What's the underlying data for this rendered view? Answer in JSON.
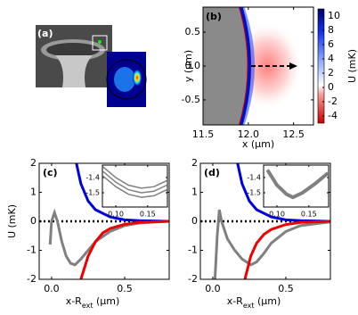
{
  "chart_data": [
    {
      "type": "image",
      "label": "(a)"
    },
    {
      "type": "heatmap",
      "label": "(b)",
      "x_label": "x (μm)",
      "y_label": "y (μm)",
      "colorbar_label": "U (mK)",
      "xlim": [
        11.5,
        12.72
      ],
      "ylim": [
        -0.87,
        0.87
      ],
      "xticks": [
        11.5,
        {
          "value": 12,
          "label": "12.0"
        },
        12.5
      ],
      "yticks": [
        -0.5,
        {
          "value": 0,
          "label": "0.0"
        },
        0.5
      ],
      "clim": [
        -5,
        11
      ],
      "cticks": [
        -4,
        -2,
        0,
        2,
        4,
        6,
        8,
        10
      ]
    },
    {
      "type": "line",
      "label": "(c)",
      "y_label": "U (mK)",
      "x_label": {
        "main": "x-R",
        "sub": "ext",
        "unit": " (μm)"
      },
      "xlim": [
        -0.085,
        0.805
      ],
      "ylim": [
        -2,
        2
      ],
      "xticks": [
        {
          "value": 0,
          "label": "0.0"
        },
        0.5
      ],
      "yticks": [
        -2,
        -1,
        0,
        1,
        2
      ],
      "hline": 0,
      "series": [
        {
          "color": "#0000dd",
          "x": [
            0.17,
            0.2,
            0.25,
            0.3,
            0.4,
            0.5,
            0.6,
            0.8
          ],
          "values": [
            2,
            1.3,
            0.7,
            0.4,
            0.15,
            0.05,
            0.02,
            0
          ]
        },
        {
          "color": "#808080",
          "x": [
            -0.01,
            0.0,
            0.02,
            0.04,
            0.07,
            0.1,
            0.13,
            0.16,
            0.2,
            0.25,
            0.3,
            0.4,
            0.5,
            0.6,
            0.8
          ],
          "values": [
            -0.8,
            0.0,
            0.3,
            0.0,
            -0.7,
            -1.2,
            -1.45,
            -1.5,
            -1.3,
            -1.0,
            -0.7,
            -0.35,
            -0.15,
            -0.06,
            0
          ]
        },
        {
          "color": "#ee0000",
          "x": [
            0.2,
            0.25,
            0.3,
            0.35,
            0.4,
            0.5,
            0.6,
            0.8
          ],
          "values": [
            -2,
            -1.2,
            -0.7,
            -0.4,
            -0.25,
            -0.1,
            -0.04,
            0
          ]
        }
      ],
      "inset": {
        "xlim": [
          0.079,
          0.181
        ],
        "ylim": [
          -1.594,
          -1.318
        ],
        "xticks": [
          {
            "value": 0.1,
            "label": "0.10"
          },
          0.15
        ],
        "yticks": [
          -1.4,
          -1.5
        ],
        "series": [
          {
            "color": "#808080",
            "x": [
              0.08,
              0.1,
              0.12,
              0.14,
              0.16,
              0.18
            ],
            "values": [
              -1.33,
              -1.4,
              -1.45,
              -1.47,
              -1.46,
              -1.42
            ]
          },
          {
            "color": "#808080",
            "x": [
              0.08,
              0.1,
              0.12,
              0.14,
              0.16,
              0.18
            ],
            "values": [
              -1.36,
              -1.43,
              -1.48,
              -1.5,
              -1.49,
              -1.45
            ]
          },
          {
            "color": "#808080",
            "x": [
              0.08,
              0.1,
              0.12,
              0.14,
              0.16,
              0.18
            ],
            "values": [
              -1.39,
              -1.46,
              -1.51,
              -1.53,
              -1.52,
              -1.48
            ]
          }
        ]
      }
    },
    {
      "type": "line",
      "label": "(d)",
      "x_label": {
        "main": "x-R",
        "sub": "ext",
        "unit": " (μm)"
      },
      "xlim": [
        -0.085,
        0.805
      ],
      "ylim": [
        -2,
        2
      ],
      "xticks": [
        {
          "value": 0,
          "label": "0.0"
        },
        0.5
      ],
      "yticks": [
        -2,
        -1,
        0,
        1,
        2
      ],
      "hline": 0,
      "series": [
        {
          "color": "#0000dd",
          "x": [
            0.17,
            0.2,
            0.25,
            0.3,
            0.4,
            0.5,
            0.6,
            0.8
          ],
          "values": [
            2,
            1.3,
            0.7,
            0.4,
            0.15,
            0.05,
            0.02,
            0
          ]
        },
        {
          "color": "#808080",
          "x": [
            0.015,
            0.03,
            0.045,
            0.06,
            0.1,
            0.15,
            0.2,
            0.26,
            0.3,
            0.35,
            0.4,
            0.5,
            0.6,
            0.8
          ],
          "values": [
            -2,
            -0.5,
            0.4,
            0,
            -0.6,
            -1.0,
            -1.3,
            -1.5,
            -1.4,
            -1.1,
            -0.75,
            -0.35,
            -0.15,
            -0.02
          ]
        },
        {
          "color": "#ee0000",
          "x": [
            0.22,
            0.26,
            0.3,
            0.35,
            0.4,
            0.5,
            0.6,
            0.8
          ],
          "values": [
            -2,
            -1.2,
            -0.75,
            -0.45,
            -0.28,
            -0.11,
            -0.04,
            0
          ]
        }
      ],
      "inset": {
        "xlim": [
          0.079,
          0.181
        ],
        "ylim": [
          -1.594,
          -1.318
        ],
        "xticks": [
          {
            "value": 0.1,
            "label": "0.10"
          },
          0.15
        ],
        "yticks": [
          -1.4,
          -1.5
        ],
        "series": [
          {
            "color": "#808080",
            "x": [
              0.085,
              0.1,
              0.115,
              0.125,
              0.14,
              0.16,
              0.18
            ],
            "values": [
              -1.35,
              -1.45,
              -1.51,
              -1.53,
              -1.5,
              -1.44,
              -1.37
            ]
          }
        ]
      }
    }
  ]
}
